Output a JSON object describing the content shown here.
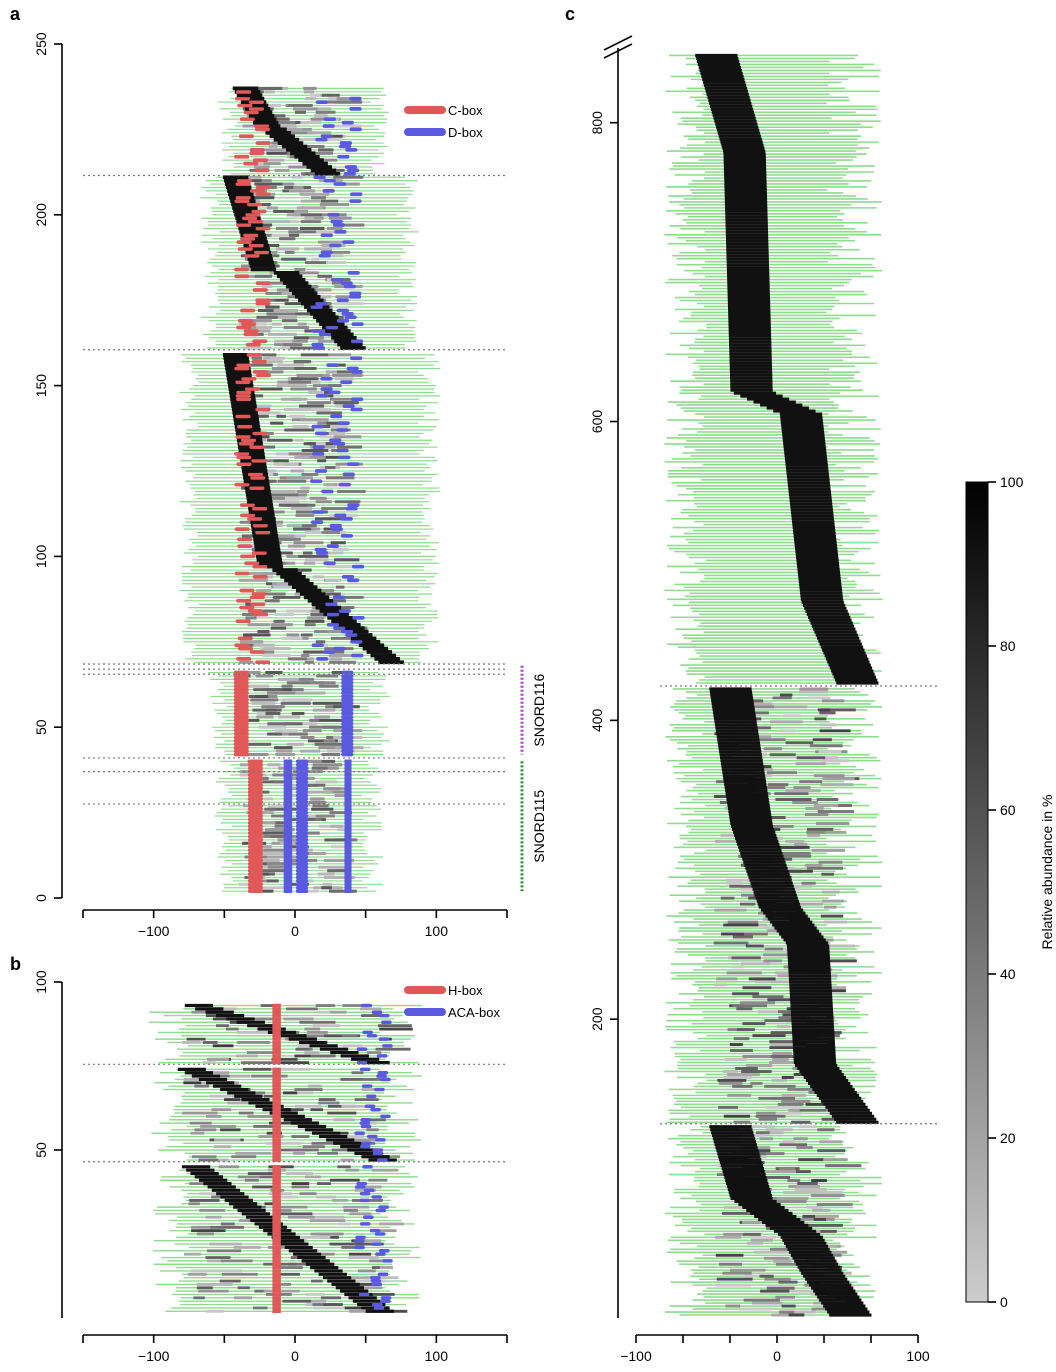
{
  "colors": {
    "read_line": "#8fdc8f",
    "c_box": "#e05858",
    "d_box": "#5a5ae0",
    "box_black": "#111111",
    "dotted": "#777777"
  },
  "chart_data": [
    {
      "panel": "a",
      "type": "bar",
      "orientation": "horizontal-segments",
      "xlim": [
        -150,
        150
      ],
      "ylim": [
        0,
        250
      ],
      "xticks": [
        -100,
        0,
        100
      ],
      "yticks": [
        0,
        50,
        100,
        150,
        200,
        250
      ],
      "xlabel": "",
      "ylabel": "",
      "legend": {
        "placement": "top-right",
        "entries": [
          {
            "label": "C-box",
            "color": "#e05858"
          },
          {
            "label": "D-box",
            "color": "#5a5ae0"
          }
        ]
      },
      "separators_y": [
        211.5,
        160.5,
        68.5,
        67,
        65.5,
        41,
        37,
        27.5
      ],
      "group_labels": [
        {
          "label": "SNORD116",
          "y_range": [
            42,
            68
          ],
          "color": "#b040e0"
        },
        {
          "label": "SNORD115",
          "y_range": [
            2,
            40
          ],
          "color": "#2a8a2a"
        }
      ],
      "groups": [
        {
          "y_range": [
            212,
            237
          ],
          "box1": [
            -38,
            -22
          ],
          "box2": [
            -20,
            20
          ],
          "span": [
            -48,
            60
          ],
          "split": 0.45
        },
        {
          "y_range": [
            161,
            211
          ],
          "box1": [
            -45,
            -25
          ],
          "box2": [
            -10,
            38
          ],
          "span": [
            -60,
            80
          ],
          "split": 0.55
        },
        {
          "y_range": [
            69,
            159
          ],
          "box1": [
            -45,
            -20
          ],
          "box2": [
            -10,
            65
          ],
          "span": [
            -75,
            95
          ],
          "split": 0.7
        },
        {
          "y_range": [
            42,
            66
          ],
          "box1": [
            -38,
            -38
          ],
          "box2": [
            -3,
            -3
          ],
          "span": [
            -55,
            60
          ],
          "split": 1.0
        },
        {
          "y_range": [
            28,
            40
          ],
          "box1": [
            -28,
            -28
          ],
          "box2": [
            5,
            5
          ],
          "span": [
            -50,
            55
          ],
          "split": 1.0
        },
        {
          "y_range": [
            2,
            27
          ],
          "box1": [
            -28,
            -28
          ],
          "box2": [
            5,
            5
          ],
          "span": [
            -50,
            55
          ],
          "split": 1.0
        }
      ]
    },
    {
      "panel": "b",
      "type": "bar",
      "orientation": "horizontal-segments",
      "xlim": [
        -150,
        150
      ],
      "ylim": [
        0,
        100
      ],
      "xticks": [
        -100,
        0,
        100
      ],
      "yticks": [
        50,
        100
      ],
      "xlabel": "",
      "ylabel": "",
      "legend": {
        "placement": "top-right",
        "entries": [
          {
            "label": "H-box",
            "color": "#e05858"
          },
          {
            "label": "ACA-box",
            "color": "#5a5ae0"
          }
        ]
      },
      "separators_y": [
        75.5,
        46.5
      ],
      "h_box_x": -13,
      "groups": [
        {
          "y_range": [
            76,
            93
          ],
          "black_from": [
            -70,
            55
          ]
        },
        {
          "y_range": [
            47,
            74
          ],
          "black_from": [
            -75,
            60
          ]
        },
        {
          "y_range": [
            2,
            45
          ],
          "black_from": [
            -72,
            58
          ]
        }
      ]
    },
    {
      "panel": "c",
      "type": "bar",
      "orientation": "horizontal-segments",
      "xlim": [
        -100,
        100
      ],
      "ylim": [
        0,
        850
      ],
      "xticks": [
        -100,
        0,
        100
      ],
      "yticks": [
        200,
        400,
        600,
        800
      ],
      "xlabel": "",
      "ylabel": "",
      "axis_break": true,
      "separators_y": [
        423,
        130
      ],
      "groups": [
        {
          "y_range": [
            425,
            845
          ],
          "black_path": [
            [
              -50,
              845
            ],
            [
              -30,
              780
            ],
            [
              -25,
              620
            ],
            [
              10,
              605
            ],
            [
              25,
              480
            ],
            [
              50,
              425
            ]
          ]
        },
        {
          "y_range": [
            131,
            421
          ],
          "black_path": [
            [
              -40,
              421
            ],
            [
              -25,
              330
            ],
            [
              -5,
              275
            ],
            [
              15,
              250
            ],
            [
              20,
              170
            ],
            [
              50,
              131
            ]
          ]
        },
        {
          "y_range": [
            2,
            128
          ],
          "black_path": [
            [
              -40,
              128
            ],
            [
              -25,
              80
            ],
            [
              10,
              55
            ],
            [
              25,
              30
            ],
            [
              45,
              2
            ]
          ]
        }
      ]
    }
  ],
  "colorbar": {
    "label": "Relative abundance in %",
    "ticks": [
      0,
      20,
      40,
      60,
      80,
      100
    ],
    "range": [
      0,
      100
    ],
    "gradient": [
      "#cccccc",
      "#000000"
    ]
  },
  "panels": {
    "a": "a",
    "b": "b",
    "c": "c"
  }
}
